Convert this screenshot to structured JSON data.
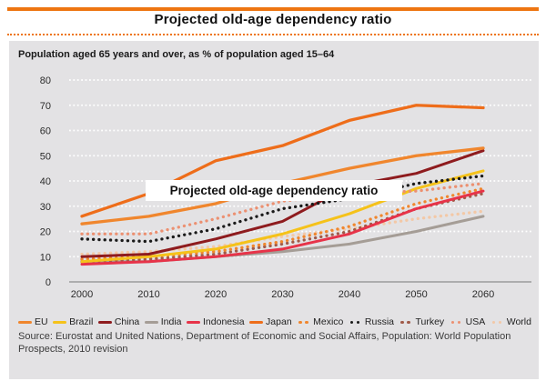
{
  "header": {
    "title": "Projected old-age dependency ratio"
  },
  "subtitle": "Population aged 65 years and over, as % of population aged 15–64",
  "overlay_label": "Projected old-age dependency ratio",
  "source": "Source: Eurostat and United Nations, Department of Economic and Social Affairs, Population: World Population Prospects, 2010 revision",
  "colors": {
    "accent_orange": "#EE7511",
    "panel_bg": "#E3E2E4",
    "grid_white": "#FFFFFF",
    "axis_gray": "#9B9B9B"
  },
  "chart_data": {
    "type": "line",
    "title": "Projected old-age dependency ratio",
    "subtitle": "Population aged 65 years and over, as % of population aged 15–64",
    "categories": [
      2000,
      2010,
      2020,
      2030,
      2040,
      2050,
      2060
    ],
    "yticks": [
      0,
      10,
      20,
      30,
      40,
      50,
      60,
      70,
      80
    ],
    "ylim": [
      0,
      80
    ],
    "grid": "horizontal-dotted-white",
    "legend_position": "bottom",
    "series": [
      {
        "name": "EU",
        "style": "solid",
        "color": "#F0862D",
        "values": [
          23,
          26,
          31,
          39,
          45,
          50,
          53
        ]
      },
      {
        "name": "Brazil",
        "style": "solid",
        "color": "#F5C21A",
        "values": [
          8,
          10,
          13,
          19,
          27,
          37,
          44
        ]
      },
      {
        "name": "China",
        "style": "solid",
        "color": "#8E1B1E",
        "values": [
          10,
          11,
          17,
          24,
          38,
          43,
          52
        ]
      },
      {
        "name": "India",
        "style": "solid",
        "color": "#A59D96",
        "values": [
          8,
          8,
          10,
          12,
          15,
          20,
          26
        ]
      },
      {
        "name": "Indonesia",
        "style": "solid",
        "color": "#E73349",
        "values": [
          7,
          8,
          10,
          13,
          19,
          29,
          36
        ]
      },
      {
        "name": "Japan",
        "style": "solid",
        "color": "#EE6D1A",
        "values": [
          26,
          35,
          48,
          54,
          64,
          70,
          69
        ]
      },
      {
        "name": "Mexico",
        "style": "dotted",
        "color": "#F0862D",
        "values": [
          9,
          10,
          12,
          16,
          22,
          31,
          37
        ]
      },
      {
        "name": "Russia",
        "style": "dotted",
        "color": "#1A1A1A",
        "values": [
          17,
          16,
          21,
          29,
          33,
          39,
          42
        ]
      },
      {
        "name": "Turkey",
        "style": "dotted",
        "color": "#A05A48",
        "values": [
          8,
          9,
          11,
          15,
          20,
          29,
          35
        ]
      },
      {
        "name": "USA",
        "style": "dotted",
        "color": "#EC9071",
        "values": [
          19,
          19,
          25,
          32,
          35,
          36,
          39
        ]
      },
      {
        "name": "World",
        "style": "dotted",
        "color": "#F3C8A6",
        "values": [
          11,
          12,
          14,
          18,
          21,
          25,
          28
        ]
      }
    ]
  }
}
